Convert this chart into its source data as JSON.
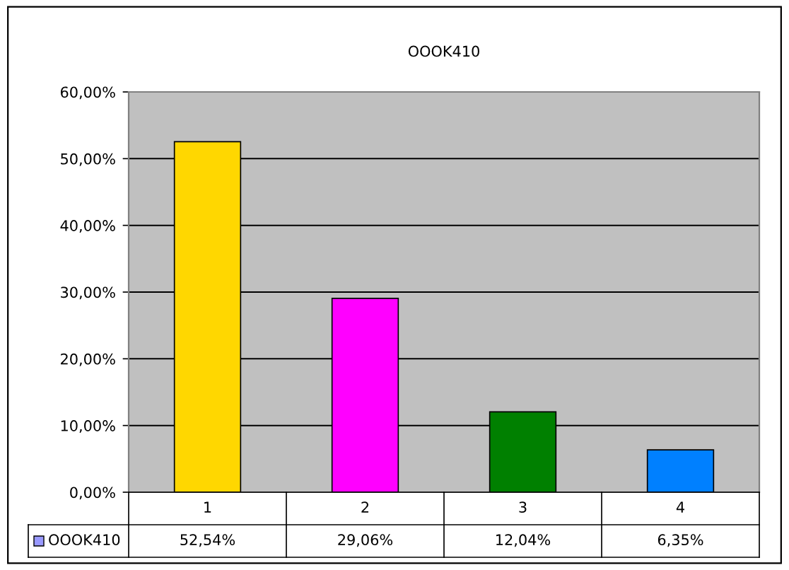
{
  "chart_data": {
    "type": "bar",
    "title": "OOOK410",
    "categories": [
      "1",
      "2",
      "3",
      "4"
    ],
    "series": [
      {
        "name": "OOOK410",
        "color": "#9999ff",
        "colors": [
          "#ffd700",
          "#ff00ff",
          "#008000",
          "#0080ff"
        ],
        "values": [
          52.54,
          29.06,
          12.04,
          6.35
        ],
        "value_labels": [
          "52,54%",
          "29,06%",
          "12,04%",
          "6,35%"
        ]
      }
    ],
    "ylim": [
      0,
      60
    ],
    "yticks": [
      {
        "value": 0,
        "label": "0,00%"
      },
      {
        "value": 10,
        "label": "10,00%"
      },
      {
        "value": 20,
        "label": "20,00%"
      },
      {
        "value": 30,
        "label": "30,00%"
      },
      {
        "value": 40,
        "label": "40,00%"
      },
      {
        "value": 50,
        "label": "50,00%"
      },
      {
        "value": 60,
        "label": "60,00%"
      }
    ],
    "grid": "y",
    "legend": "bottom"
  }
}
